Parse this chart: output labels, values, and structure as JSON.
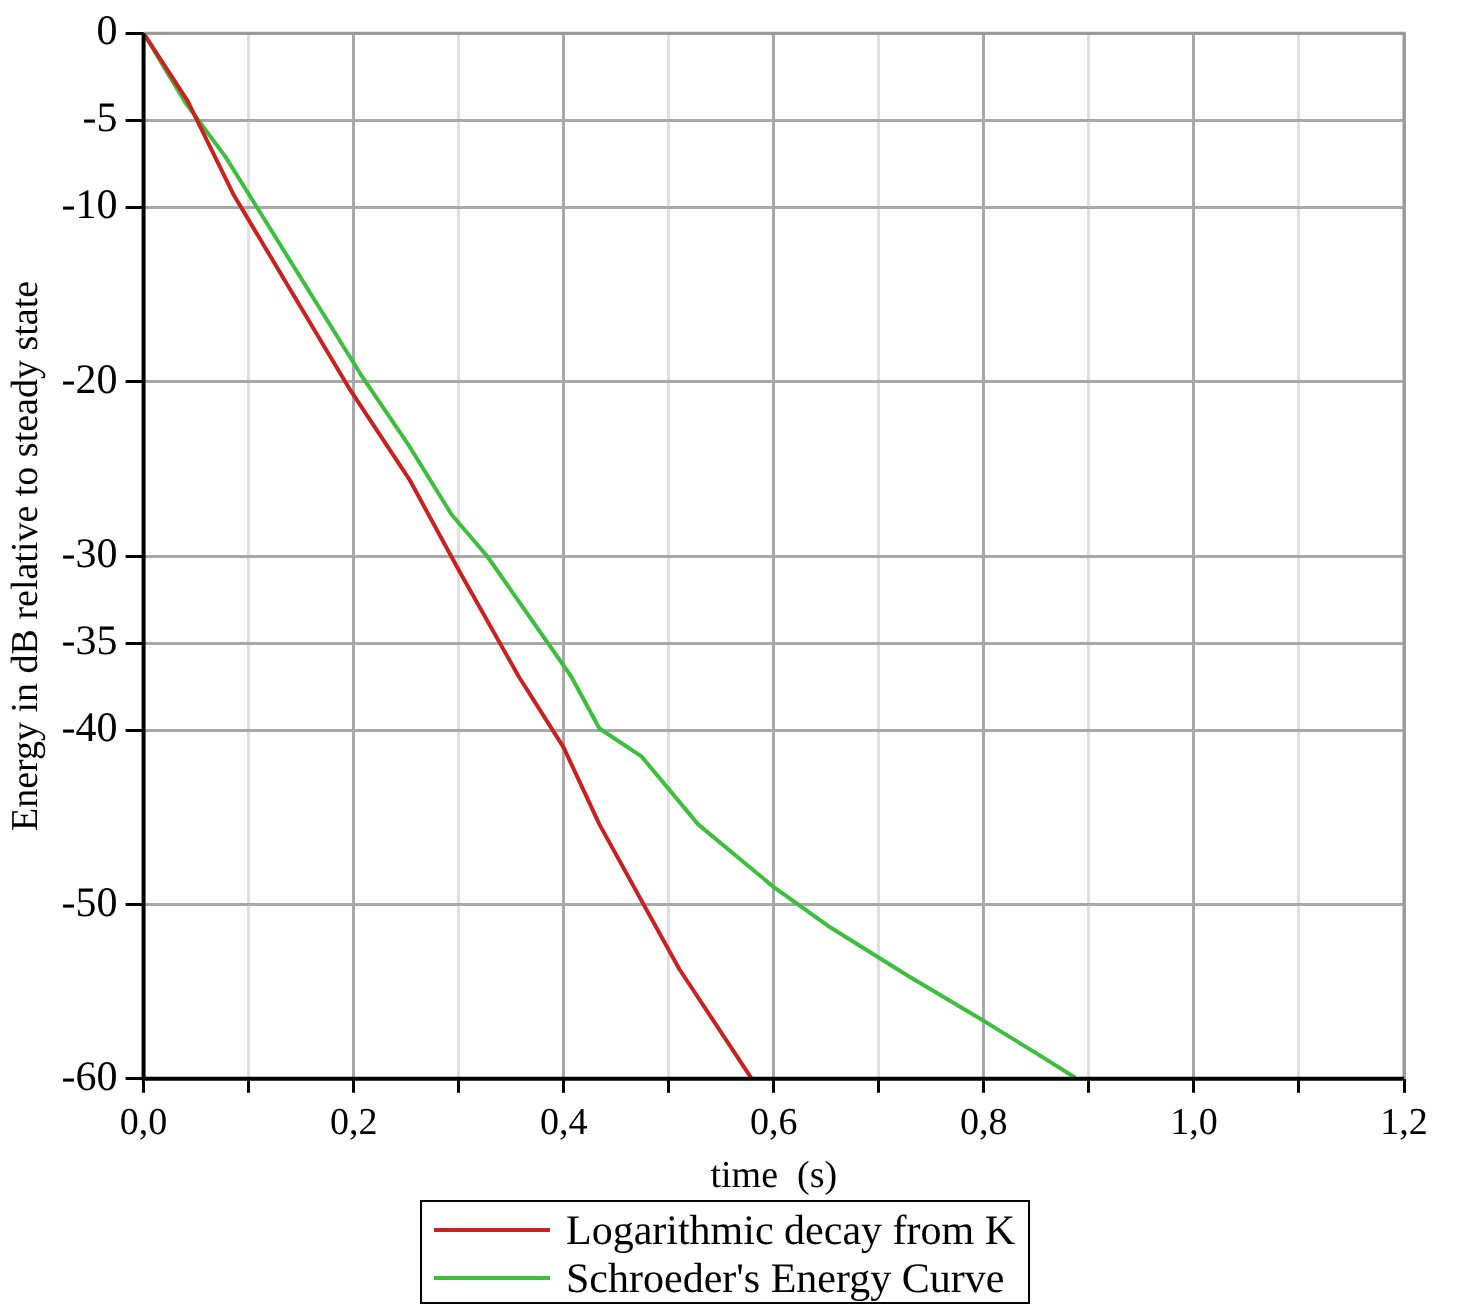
{
  "chart_data": {
    "type": "line",
    "xlabel": "time  (s)",
    "ylabel": "Energy in dB relative to steady state",
    "xlim": [
      0,
      1.2
    ],
    "xticks": [
      {
        "value": 0,
        "label": "0,0"
      },
      {
        "value": 0.1,
        "label": null
      },
      {
        "value": 0.2,
        "label": "0,2"
      },
      {
        "value": 0.3,
        "label": null
      },
      {
        "value": 0.4,
        "label": "0,4"
      },
      {
        "value": 0.5,
        "label": null
      },
      {
        "value": 0.6,
        "label": "0,6"
      },
      {
        "value": 0.7,
        "label": null
      },
      {
        "value": 0.8,
        "label": "0,8"
      },
      {
        "value": 0.9,
        "label": null
      },
      {
        "value": 1.0,
        "label": "1,0"
      },
      {
        "value": 1.1,
        "label": null
      },
      {
        "value": 1.2,
        "label": "1,2"
      }
    ],
    "ylim": [
      -60,
      0
    ],
    "yticks": [
      -60,
      -50,
      -40,
      -35,
      -30,
      -20,
      -10,
      -5,
      0
    ],
    "grid": true,
    "legend": "bottom",
    "marker": "none",
    "line_style": "solid",
    "series": [
      {
        "name": "Logarithmic decay from K",
        "color": "#cc2020",
        "x": [
          0,
          0.042,
          0.086,
          0.197,
          0.253,
          0.3,
          0.357,
          0.4,
          0.434,
          0.51,
          0.578
        ],
        "values": [
          0,
          -3.9,
          -9.3,
          -20.5,
          -25.6,
          -30.8,
          -36.9,
          -41.0,
          -45.4,
          -53.7,
          -59.9
        ]
      },
      {
        "name": "Schroeder's Energy Curve",
        "color": "#3cbf3c",
        "x": [
          0,
          0.04,
          0.078,
          0.106,
          0.207,
          0.253,
          0.293,
          0.327,
          0.407,
          0.434,
          0.474,
          0.528,
          0.6,
          0.651,
          0.728,
          0.795,
          0.849,
          0.886
        ],
        "values": [
          0,
          -4,
          -7.1,
          -9.8,
          -19.6,
          -23.7,
          -27.6,
          -30.0,
          -36.9,
          -39.9,
          -41.5,
          -45.4,
          -49.0,
          -51.2,
          -54.1,
          -56.5,
          -58.5,
          -59.9
        ]
      }
    ]
  }
}
